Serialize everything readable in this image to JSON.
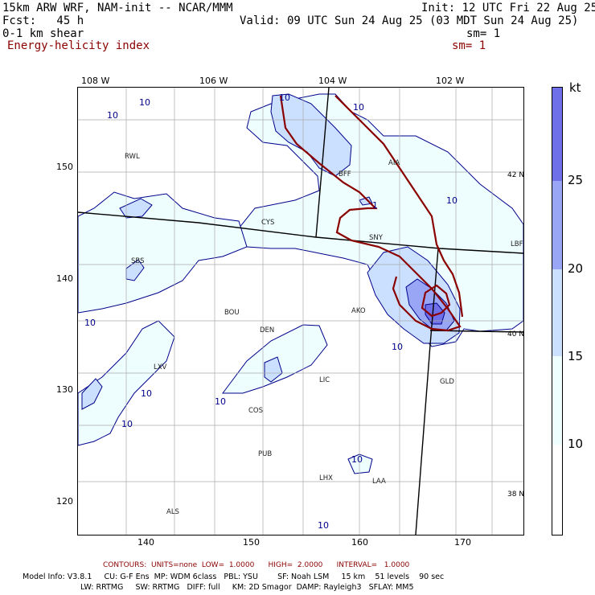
{
  "header": {
    "model": "15km ARW WRF, NAM-init -- NCAR/MMM",
    "init": "Init: 12 UTC Fri 22 Aug 25",
    "fcst": "Fcst:   45 h",
    "valid": "Valid: 09 UTC Sun 24 Aug 25 (03 MDT Sun 24 Aug 25)",
    "field1": "0-1 km shear",
    "field1_sm": "sm= 1",
    "field2": "Energy-helicity index",
    "field2_sm": "sm= 1"
  },
  "top_axis": [
    "108 W",
    "106 W",
    "104 W",
    "102 W"
  ],
  "left_axis": [
    "150",
    "140",
    "130",
    "120"
  ],
  "bottom_axis": [
    "140",
    "150",
    "160",
    "170"
  ],
  "lat_labels": [
    "42 N",
    "40 N",
    "38 N"
  ],
  "cities": [
    "RWL",
    "BFF",
    "AIA",
    "CYS",
    "SNY",
    "LBF",
    "SBS",
    "BOU",
    "AKO",
    "DEN",
    "LXV",
    "LIC",
    "GLD",
    "COS",
    "PUB",
    "LHX",
    "LAA",
    "ALS"
  ],
  "contour_labels": [
    "10",
    "10",
    "10",
    "10",
    "10",
    "10",
    "10",
    "10",
    "10",
    "10",
    "10",
    "10",
    "1"
  ],
  "colorbar": {
    "unit": "kt",
    "labels": [
      "25",
      "20",
      "15",
      "10"
    ],
    "colors": {
      "c10": "#eefefe",
      "c15": "#cbe0ff",
      "c20": "#98a6f5",
      "c25": "#6f6fea"
    }
  },
  "footer": {
    "contours": "CONTOURS:  UNITS=none  LOW=  1.0000      HIGH=  2.0000      INTERVAL=   1.0000",
    "model_info_1": "Model Info: V3.8.1     CU: G-F Ens  MP: WDM 6class   PBL: YSU        SF: Noah LSM     15 km    51 levels    90 sec",
    "model_info_2": "LW: RRTMG     SW: RRTMG   DIFF: full     KM: 2D Smagor  DAMP: Rayleigh3   SFLAY: MM5"
  }
}
